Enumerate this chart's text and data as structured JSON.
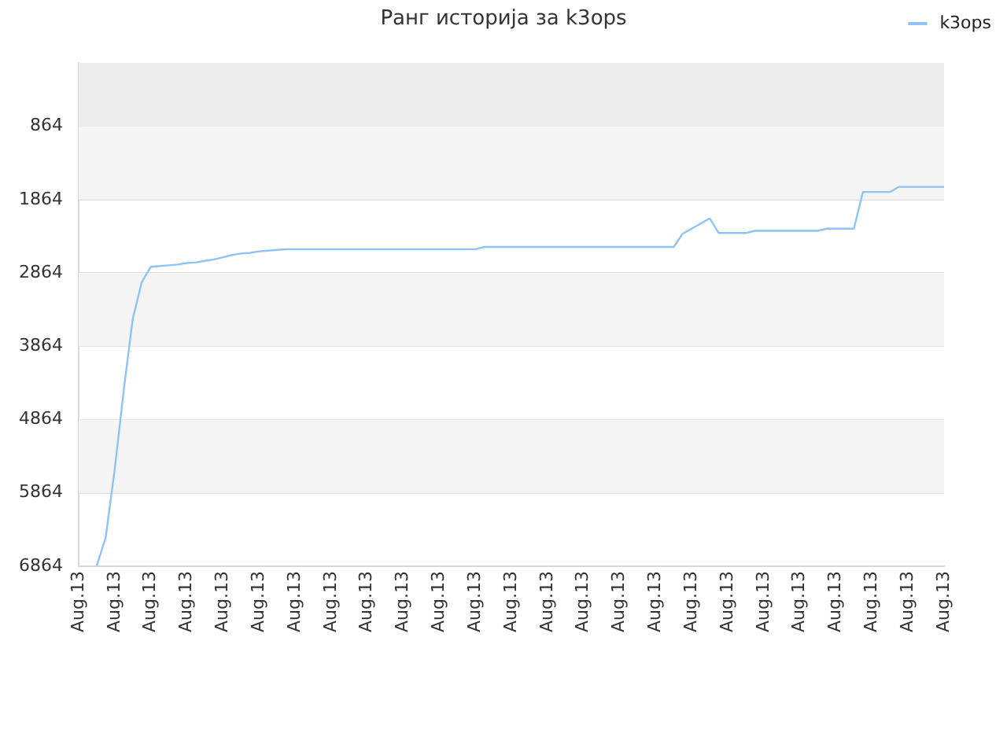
{
  "chart_data": {
    "type": "line",
    "title": "Ранг историја за k3ops",
    "categories": [
      "Aug.13",
      null,
      null,
      null,
      "Aug.13",
      null,
      null,
      null,
      "Aug.13",
      null,
      null,
      null,
      "Aug.13",
      null,
      null,
      null,
      "Aug.13",
      null,
      null,
      null,
      "Aug.13",
      null,
      null,
      null,
      "Aug.13",
      null,
      null,
      null,
      "Aug.13",
      null,
      null,
      null,
      "Aug.13",
      null,
      null,
      null,
      "Aug.13",
      null,
      null,
      null,
      "Aug.13",
      null,
      null,
      null,
      "Aug.13",
      null,
      null,
      null,
      "Aug.13",
      null,
      null,
      null,
      "Aug.13",
      null,
      null,
      null,
      "Aug.13",
      null,
      null,
      null,
      "Aug.13",
      null,
      null,
      null,
      "Aug.13",
      null,
      null,
      null,
      "Aug.13",
      null,
      null,
      null,
      "Aug.13",
      null,
      null,
      null,
      "Aug.13",
      null,
      null,
      null,
      "Aug.13",
      null,
      null,
      null,
      "Aug.13",
      null,
      null,
      null,
      "Aug.13",
      null,
      null,
      null,
      "Aug.13",
      null,
      null,
      null,
      "Aug.13"
    ],
    "series": [
      {
        "name": "k3ops",
        "color": "#90c3f5",
        "values": [
          null,
          null,
          6860,
          6470,
          5540,
          4460,
          3490,
          2990,
          2780,
          2770,
          2760,
          2750,
          2730,
          2720,
          2700,
          2680,
          2650,
          2620,
          2600,
          2590,
          2570,
          2560,
          2550,
          2540,
          2540,
          2540,
          2540,
          2540,
          2540,
          2540,
          2540,
          2540,
          2540,
          2540,
          2540,
          2540,
          2540,
          2540,
          2540,
          2540,
          2540,
          2540,
          2540,
          2540,
          2540,
          2510,
          2510,
          2510,
          2510,
          2510,
          2510,
          2510,
          2510,
          2510,
          2510,
          2510,
          2510,
          2510,
          2510,
          2510,
          2510,
          2510,
          2510,
          2510,
          2510,
          2510,
          2510,
          2330,
          2260,
          2190,
          2120,
          2320,
          2320,
          2320,
          2320,
          2290,
          2290,
          2290,
          2290,
          2290,
          2290,
          2290,
          2290,
          2260,
          2260,
          2260,
          2260,
          1760,
          1760,
          1760,
          1760,
          1690,
          1690,
          1690,
          1690,
          1690,
          1690
        ]
      }
    ],
    "ylim": [
      6864,
      0
    ],
    "yticks": [
      864,
      1864,
      2864,
      3864,
      4864,
      5864,
      6864
    ],
    "grid": "y",
    "legend": "top right",
    "bands": [
      {
        "axis": "y",
        "from": 0,
        "to": 864,
        "color": "#ececec"
      },
      {
        "axis": "y",
        "from": 864,
        "to": 1864,
        "color": "#f4f4f4"
      },
      {
        "axis": "y",
        "from": 2864,
        "to": 3864,
        "color": "#f4f4f4"
      },
      {
        "axis": "y",
        "from": 4864,
        "to": 5864,
        "color": "#f4f4f4"
      }
    ]
  }
}
